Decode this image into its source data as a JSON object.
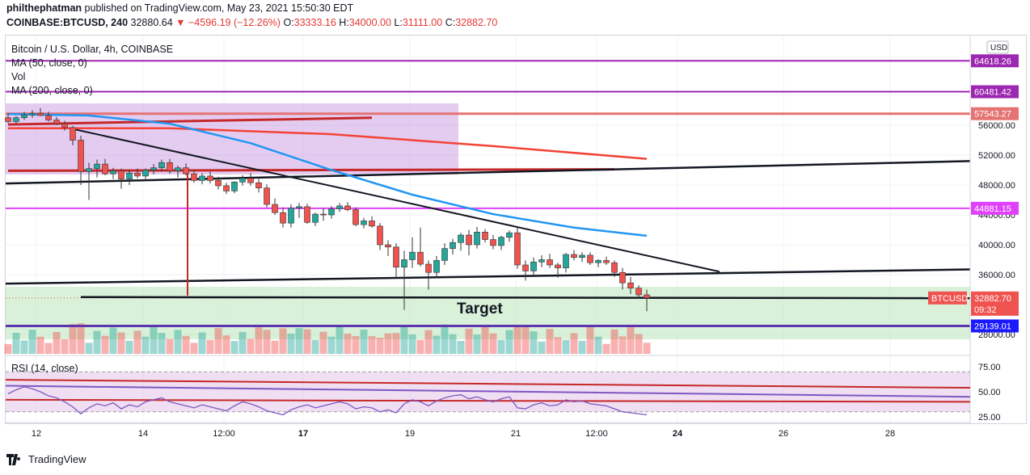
{
  "header": {
    "author": "philthephatman",
    "published_text": "published on TradingView.com, May 23, 2021 15:50:30 EDT",
    "symbol": "COINBASE:BTCUSD, 240",
    "price": "32880.64",
    "change": "▼ −4596.19 (−12.26%)",
    "ohlc": {
      "o_label": "O:",
      "o": "33333.16",
      "h_label": "H:",
      "h": "34000.00",
      "l_label": "L:",
      "l": "31111.00",
      "c_label": "C:",
      "c": "32882.70"
    }
  },
  "legend": {
    "title": "Bitcoin / U.S. Dollar, 4h, COINBASE",
    "ma50": "MA (50, close, 0)",
    "vol": "Vol",
    "ma200": "MA (200, close, 0)",
    "rsi": "RSI (14, close)"
  },
  "axis_tag": "USD",
  "colors": {
    "up": "#26a69a",
    "down": "#ef5350",
    "ma50": "#2196f3",
    "ma200": "#f44336",
    "level": "#e040fb",
    "support": "#7e57c2",
    "rsi": "#7e57c2",
    "zone": "#b9e4b9"
  },
  "chart_data": {
    "type": "candlestick",
    "title": "Bitcoin / U.S. Dollar, 4h, COINBASE",
    "y_ticks": [
      "56000.00",
      "52000.00",
      "48000.00",
      "44000.00",
      "40000.00",
      "36000.00",
      "28000.00"
    ],
    "x_ticks": [
      "12",
      "14",
      "12:00",
      "17",
      "19",
      "21",
      "12:00",
      "24",
      "26",
      "28"
    ],
    "rsi_ticks": [
      "75.00",
      "50.00",
      "25.00"
    ],
    "ylim": [
      26000,
      67000
    ],
    "price_labels": [
      {
        "label": "64618.26",
        "value": 64618.26,
        "color": "#9c27b0"
      },
      {
        "label": "60481.42",
        "value": 60481.42,
        "color": "#9c27b0"
      },
      {
        "label": "57543.27",
        "value": 57543.27,
        "color": "#e57373"
      },
      {
        "label": "44881.15",
        "value": 44881.15,
        "color": "#e040fb"
      },
      {
        "label": "BTCUSD",
        "value": 32882.7,
        "color": "#ef5350"
      },
      {
        "label": "32882.70",
        "value": 32882.7,
        "color": "#ef5350"
      },
      {
        "label": "09:32",
        "value": 32882.7,
        "color": "#ef5350"
      },
      {
        "label": "29139.01",
        "value": 29139.01,
        "color": "#1a1aff"
      }
    ],
    "annotation": "Target",
    "candles": [
      [
        57000,
        57600,
        56300,
        56500
      ],
      [
        56500,
        57200,
        56200,
        57000
      ],
      [
        57000,
        57800,
        56700,
        57400
      ],
      [
        57400,
        58000,
        57000,
        57600
      ],
      [
        57600,
        58300,
        57200,
        57300
      ],
      [
        57300,
        57800,
        56500,
        56700
      ],
      [
        56700,
        57100,
        56000,
        56200
      ],
      [
        56200,
        56600,
        55300,
        55700
      ],
      [
        55700,
        55900,
        53300,
        54000
      ],
      [
        54000,
        54600,
        48000,
        49800
      ],
      [
        49800,
        51000,
        46000,
        50200
      ],
      [
        50200,
        51400,
        49000,
        50800
      ],
      [
        50800,
        51500,
        49300,
        49500
      ],
      [
        49500,
        50300,
        48800,
        49900
      ],
      [
        49900,
        50200,
        47500,
        48800
      ],
      [
        48800,
        50000,
        48000,
        49600
      ],
      [
        49600,
        50200,
        48900,
        49200
      ],
      [
        49200,
        50200,
        48800,
        50000
      ],
      [
        50000,
        50800,
        49400,
        50300
      ],
      [
        50300,
        51400,
        49800,
        51000
      ],
      [
        51000,
        51500,
        49500,
        49900
      ],
      [
        49900,
        50600,
        49000,
        50300
      ],
      [
        50300,
        50900,
        49300,
        49500
      ],
      [
        49500,
        50000,
        48300,
        48600
      ],
      [
        48600,
        49600,
        48100,
        49200
      ],
      [
        49200,
        49800,
        48200,
        48600
      ],
      [
        48600,
        49100,
        47400,
        47900
      ],
      [
        47900,
        48300,
        46800,
        47200
      ],
      [
        47200,
        48500,
        46900,
        48400
      ],
      [
        48400,
        49300,
        47900,
        48900
      ],
      [
        48900,
        49600,
        47900,
        48300
      ],
      [
        48300,
        48800,
        47000,
        47600
      ],
      [
        47600,
        48100,
        45000,
        45400
      ],
      [
        45400,
        46200,
        44000,
        44300
      ],
      [
        44300,
        45000,
        42300,
        42900
      ],
      [
        42900,
        45400,
        42300,
        44900
      ],
      [
        44900,
        45600,
        43600,
        45100
      ],
      [
        45100,
        45500,
        42800,
        43000
      ],
      [
        43000,
        44300,
        42500,
        44100
      ],
      [
        44100,
        44900,
        43200,
        44000
      ],
      [
        44000,
        45200,
        43500,
        44800
      ],
      [
        44800,
        45600,
        44400,
        45200
      ],
      [
        45200,
        45700,
        44500,
        44700
      ],
      [
        44700,
        45000,
        42500,
        42700
      ],
      [
        42700,
        43600,
        42200,
        43200
      ],
      [
        43200,
        43800,
        42300,
        42500
      ],
      [
        42500,
        42900,
        39300,
        40000
      ],
      [
        40000,
        40600,
        38500,
        39700
      ],
      [
        39700,
        40200,
        35700,
        37000
      ],
      [
        37000,
        39200,
        31300,
        38000
      ],
      [
        38000,
        41000,
        36900,
        39000
      ],
      [
        39000,
        42300,
        37100,
        37400
      ],
      [
        37400,
        37900,
        34000,
        36300
      ],
      [
        36300,
        38500,
        35800,
        37900
      ],
      [
        37900,
        40200,
        37300,
        39500
      ],
      [
        39500,
        40800,
        38700,
        40300
      ],
      [
        40300,
        41600,
        39200,
        41300
      ],
      [
        41300,
        42000,
        38600,
        40000
      ],
      [
        40000,
        42400,
        39500,
        41700
      ],
      [
        41700,
        42100,
        40300,
        40700
      ],
      [
        40700,
        41300,
        39400,
        39900
      ],
      [
        39900,
        41200,
        39300,
        41000
      ],
      [
        41000,
        41900,
        40400,
        41600
      ],
      [
        41600,
        42300,
        36800,
        37300
      ],
      [
        37300,
        37900,
        35200,
        36500
      ],
      [
        36500,
        38300,
        36000,
        37700
      ],
      [
        37700,
        38600,
        37000,
        38000
      ],
      [
        38000,
        38800,
        36900,
        37300
      ],
      [
        37300,
        37600,
        35600,
        36900
      ],
      [
        36900,
        38900,
        36300,
        38700
      ],
      [
        38700,
        39300,
        37900,
        38300
      ],
      [
        38300,
        39000,
        37700,
        38600
      ],
      [
        38600,
        39000,
        37300,
        37600
      ],
      [
        37600,
        38100,
        37000,
        37900
      ],
      [
        37900,
        38400,
        37300,
        37600
      ],
      [
        37600,
        37900,
        35700,
        36300
      ],
      [
        36300,
        36900,
        34000,
        34900
      ],
      [
        34900,
        35700,
        33400,
        34200
      ],
      [
        34200,
        34600,
        32800,
        33300
      ],
      [
        33300,
        34000,
        31111,
        32883
      ]
    ],
    "ma50": [
      [
        0,
        57500
      ],
      [
        10,
        57300
      ],
      [
        20,
        56200
      ],
      [
        30,
        53600
      ],
      [
        40,
        50000
      ],
      [
        50,
        46700
      ],
      [
        60,
        44100
      ],
      [
        70,
        42300
      ],
      [
        79,
        41200
      ]
    ],
    "ma200": [
      [
        0,
        55600
      ],
      [
        20,
        55600
      ],
      [
        40,
        54800
      ],
      [
        60,
        53200
      ],
      [
        79,
        51500
      ]
    ]
  }
}
